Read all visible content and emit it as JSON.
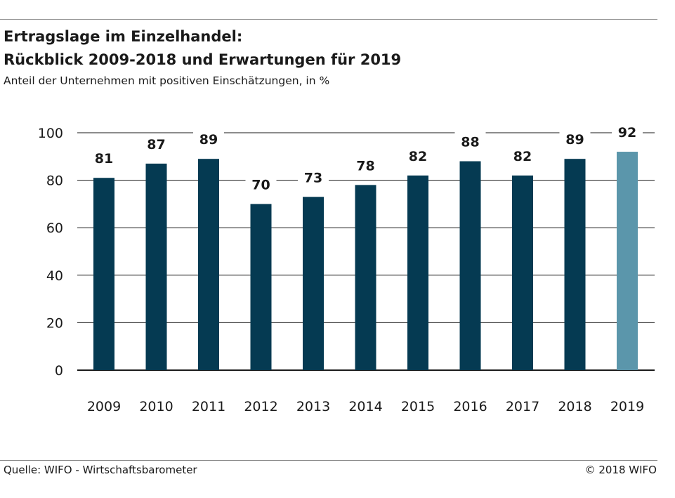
{
  "header": {
    "title_line1": "Ertragslage im Einzelhandel:",
    "title_line2": "Rückblick 2009-2018 und Erwartungen für 2019",
    "subtitle": "Anteil der Unternehmen mit positiven Einschätzungen, in %"
  },
  "footer": {
    "source": "Quelle: WIFO - Wirtschaftsbarometer",
    "copyright": "© 2018 WIFO"
  },
  "colors": {
    "bar": "#053a52",
    "bar_forecast": "#5b96ab",
    "grid": "#1a1a1a",
    "text": "#1a1a1a"
  },
  "chart_data": {
    "type": "bar",
    "categories": [
      "2009",
      "2010",
      "2011",
      "2012",
      "2013",
      "2014",
      "2015",
      "2016",
      "2017",
      "2018",
      "2019"
    ],
    "values": [
      81,
      87,
      89,
      70,
      73,
      78,
      82,
      88,
      82,
      89,
      92
    ],
    "forecast_category": "2019",
    "ylim": [
      0,
      100
    ],
    "yticks": [
      "0",
      "20",
      "40",
      "60",
      "80",
      "100"
    ],
    "grid": true,
    "data_labels": true,
    "legend": "none"
  }
}
